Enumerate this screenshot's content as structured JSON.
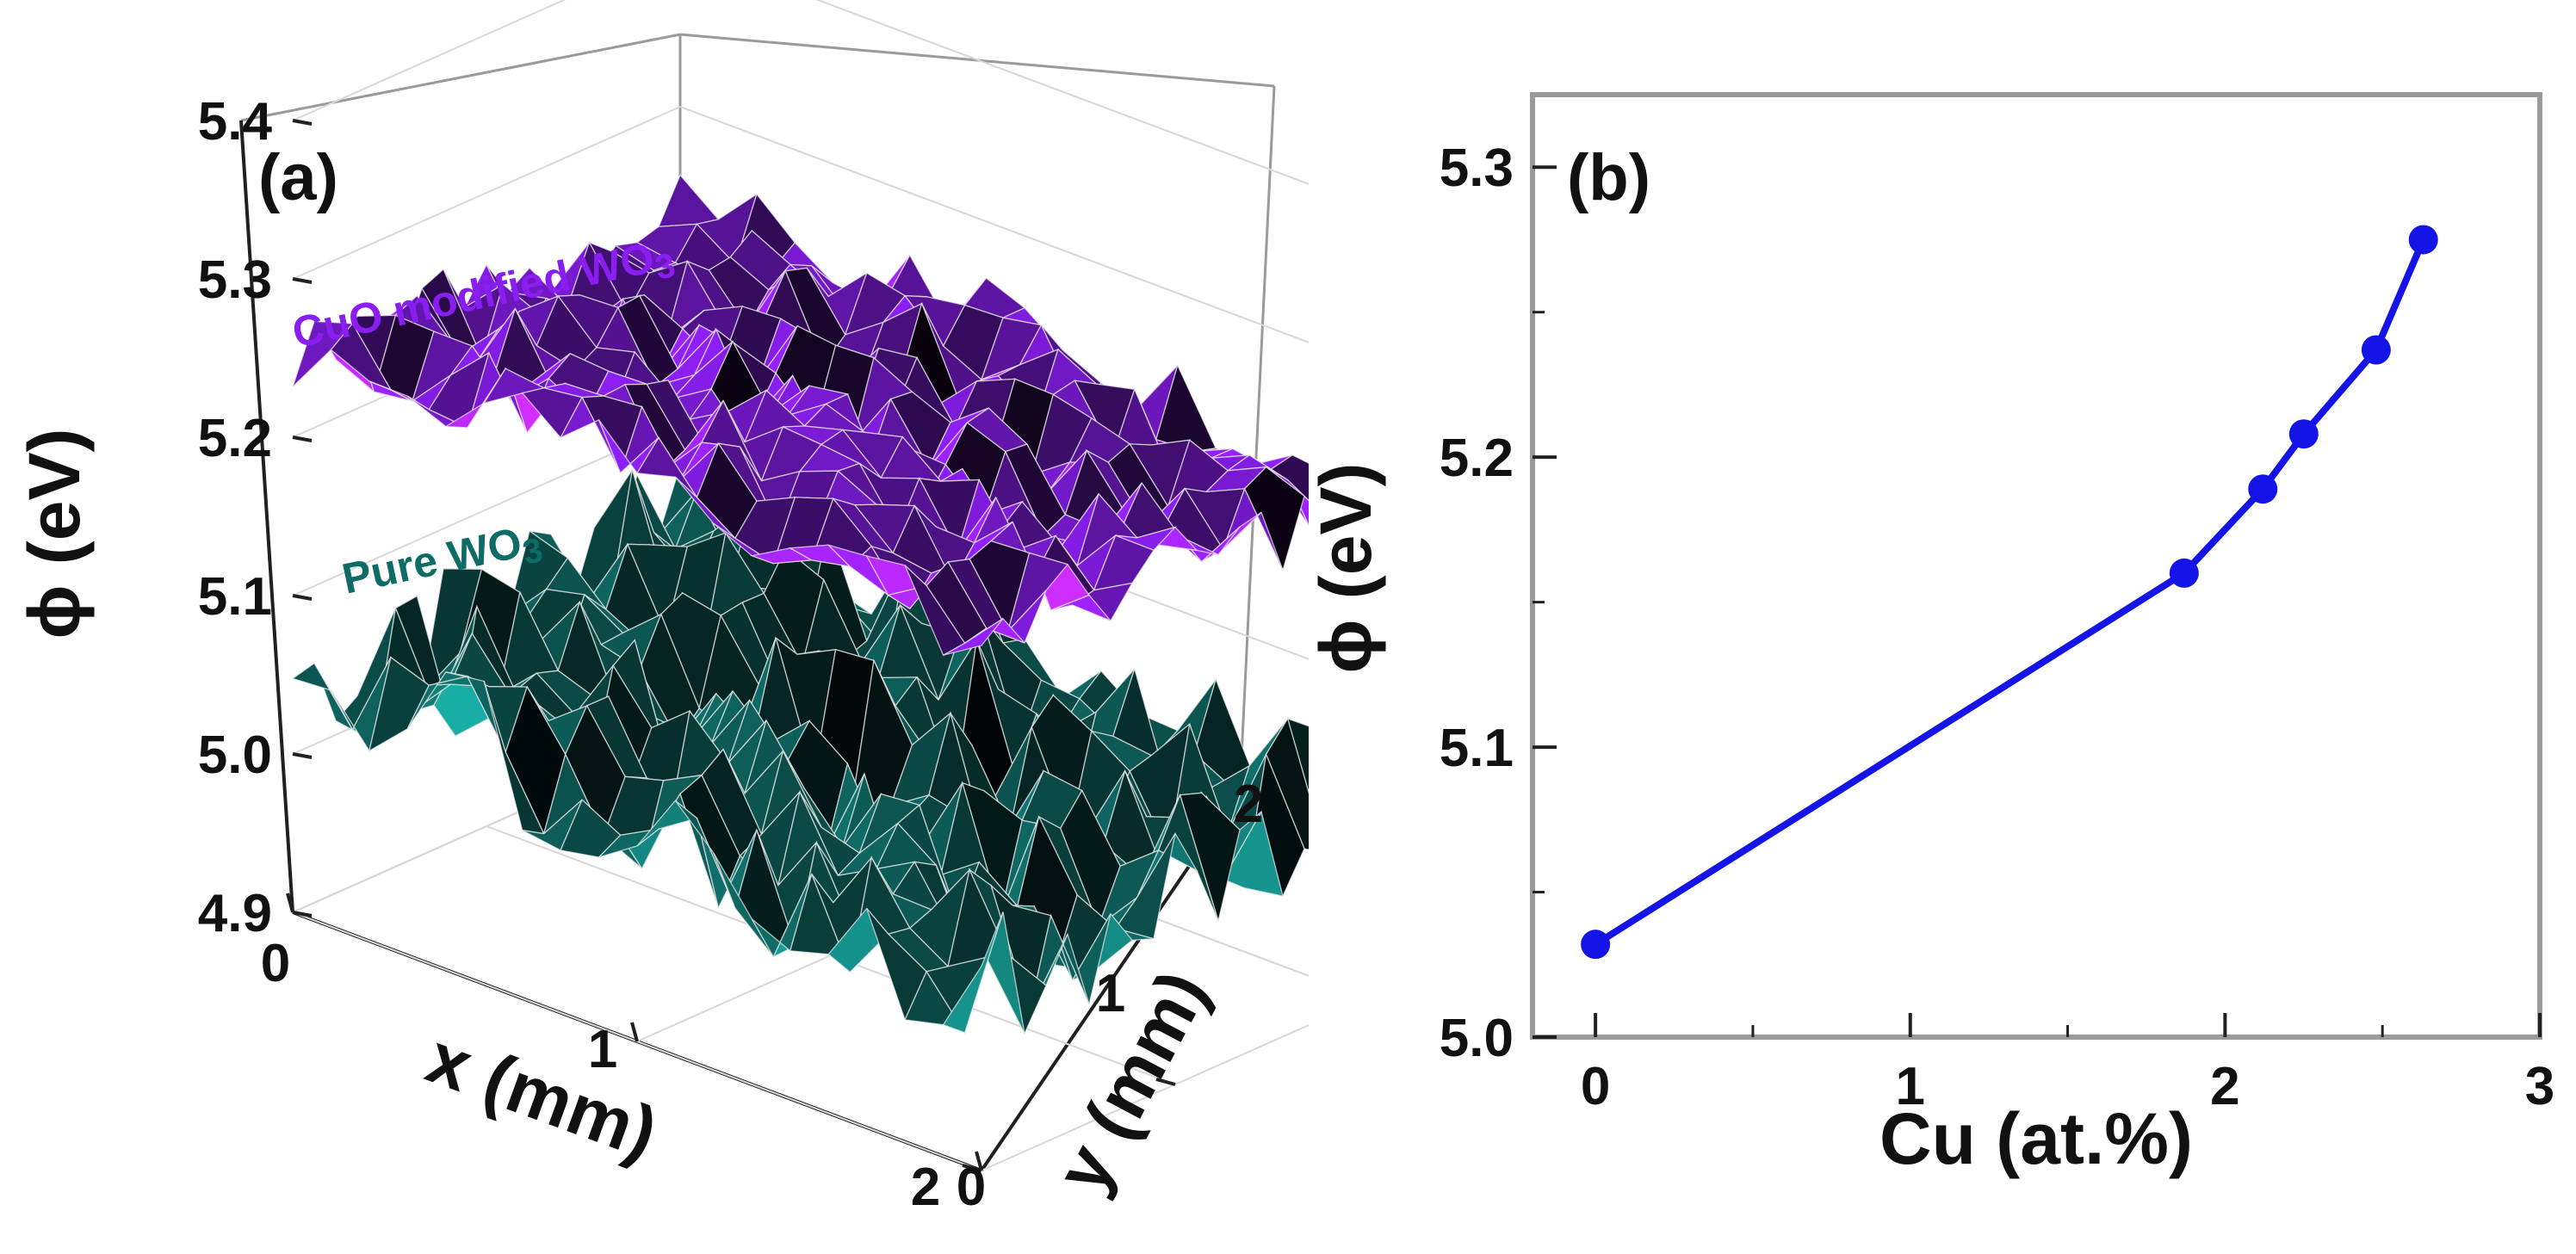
{
  "colors": {
    "cuo_surface": "#8a1ef0",
    "pure_surface": "#0f6b66",
    "line_b": "#1414e6",
    "axis": "#202020",
    "frame": "#9a9a9a",
    "grid": "#d8d8d8"
  },
  "chart_data": [
    {
      "type": "surface3d",
      "panel_label": "(a)",
      "zlabel": "ϕ (eV)",
      "xlabel": "x (mm)",
      "ylabel": "y (mm)",
      "z_ticks": [
        "4.9",
        "5.0",
        "5.1",
        "5.2",
        "5.3",
        "5.4"
      ],
      "x_ticks": [
        "0",
        "1",
        "2"
      ],
      "y_ticks": [
        "0",
        "1",
        "2"
      ],
      "zlim": [
        4.9,
        5.4
      ],
      "xlim": [
        0,
        2
      ],
      "ylim": [
        0,
        2
      ],
      "grid": true,
      "series": [
        {
          "name": "CuO modified WO3",
          "label_main": "CuO modified WO",
          "label_sub": "3",
          "mean_z": 5.24,
          "z_variation": 0.03,
          "color": "#8a1ef0"
        },
        {
          "name": "Pure WO3",
          "label_main": "Pure WO",
          "label_sub": "3",
          "mean_z": 5.04,
          "z_variation": 0.05,
          "color": "#0f6b66"
        }
      ]
    },
    {
      "type": "line",
      "panel_label": "(b)",
      "xlabel": "Cu (at.%)",
      "ylabel": "ϕ (eV)",
      "x_ticks": [
        "0",
        "1",
        "2",
        "3"
      ],
      "y_ticks": [
        "5.0",
        "5.1",
        "5.2",
        "5.3"
      ],
      "xlim": [
        -0.2,
        3
      ],
      "ylim": [
        5.0,
        5.325
      ],
      "grid": false,
      "x": [
        0,
        1.87,
        2.12,
        2.25,
        2.48,
        2.63
      ],
      "y": [
        5.032,
        5.16,
        5.189,
        5.208,
        5.237,
        5.275
      ]
    }
  ]
}
